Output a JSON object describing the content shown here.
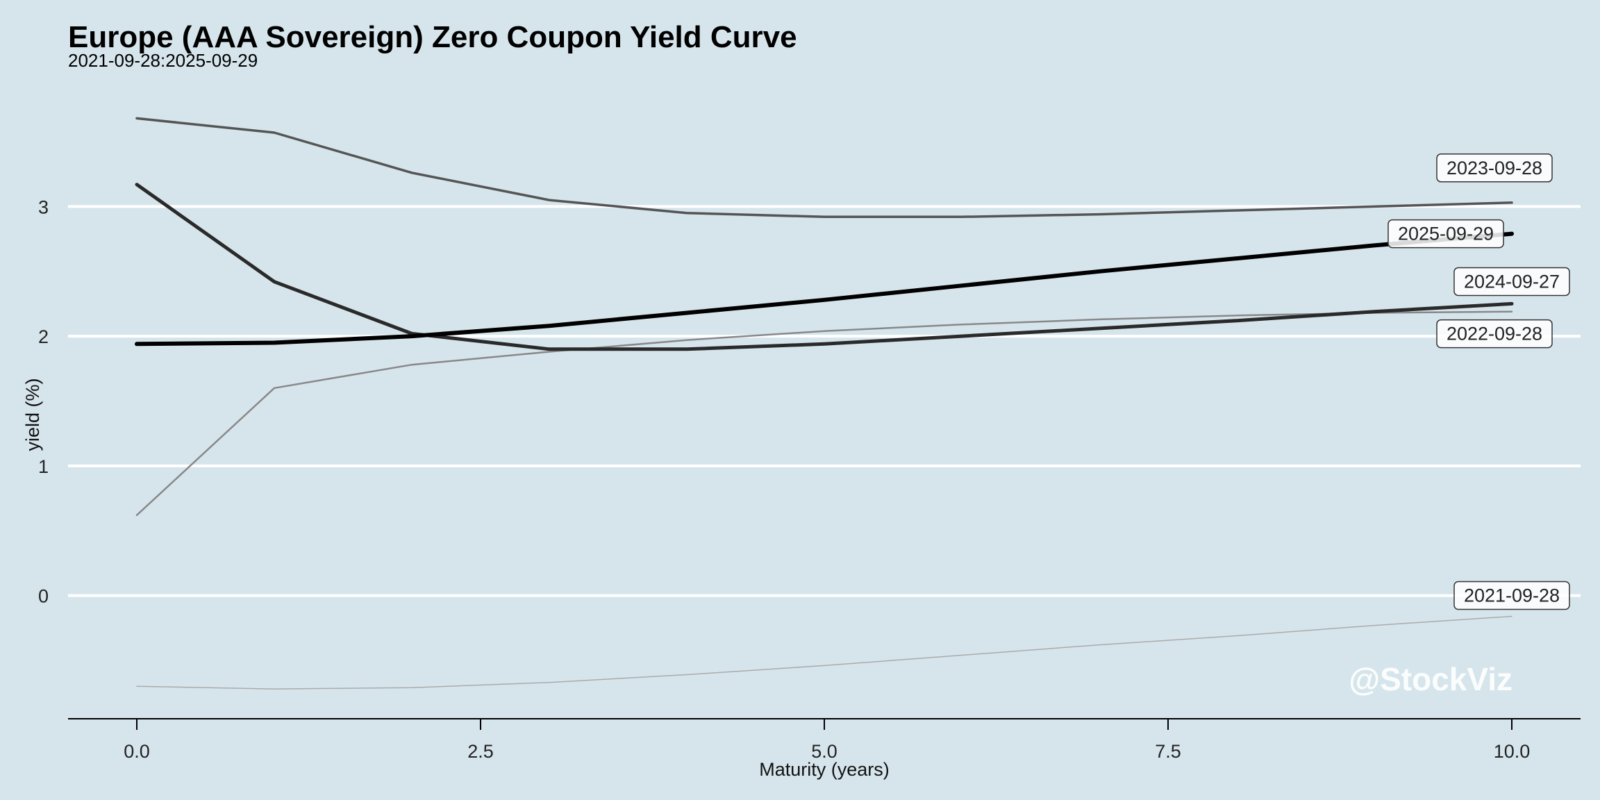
{
  "chart_data": {
    "type": "line",
    "title": "Europe (AAA Sovereign) Zero Coupon Yield Curve",
    "subtitle": "2021-09-28:2025-09-29",
    "xlabel": "Maturity (years)",
    "ylabel": "yield (%)",
    "xlim": [
      -0.5,
      10.5
    ],
    "ylim": [
      -0.95,
      3.95
    ],
    "x_ticks": [
      0.0,
      2.5,
      5.0,
      7.5,
      10.0
    ],
    "x_tick_labels": [
      "0.0",
      "2.5",
      "5.0",
      "7.5",
      "10.0"
    ],
    "y_ticks": [
      0,
      1,
      2,
      3
    ],
    "y_tick_labels": [
      "0",
      "1",
      "2",
      "3"
    ],
    "grid": "horizontal",
    "watermark": "@StockViz",
    "colors": {
      "background": "#d6e5ec",
      "grid": "#ffffff",
      "axis": "#000000"
    },
    "x": [
      0,
      1,
      2,
      3,
      4,
      5,
      6,
      7,
      8,
      9,
      10
    ],
    "series": [
      {
        "name": "2021-09-28",
        "color": "#aaaaaa",
        "width": 1.5,
        "values": [
          -0.7,
          -0.72,
          -0.71,
          -0.67,
          -0.61,
          -0.54,
          -0.46,
          -0.38,
          -0.31,
          -0.23,
          -0.16
        ]
      },
      {
        "name": "2022-09-28",
        "color": "#888888",
        "width": 2.5,
        "values": [
          0.62,
          1.6,
          1.78,
          1.88,
          1.97,
          2.04,
          2.09,
          2.13,
          2.16,
          2.18,
          2.19
        ]
      },
      {
        "name": "2023-09-28",
        "color": "#555555",
        "width": 3.5,
        "values": [
          3.68,
          3.57,
          3.26,
          3.05,
          2.95,
          2.92,
          2.92,
          2.94,
          2.97,
          3.0,
          3.03
        ]
      },
      {
        "name": "2024-09-27",
        "color": "#2a2a2a",
        "width": 5,
        "values": [
          3.17,
          2.42,
          2.02,
          1.9,
          1.9,
          1.94,
          2.0,
          2.06,
          2.12,
          2.19,
          2.25
        ]
      },
      {
        "name": "2025-09-29",
        "color": "#000000",
        "width": 6,
        "values": [
          1.94,
          1.95,
          2.0,
          2.08,
          2.18,
          2.28,
          2.39,
          2.5,
          2.6,
          2.7,
          2.79
        ]
      }
    ]
  }
}
